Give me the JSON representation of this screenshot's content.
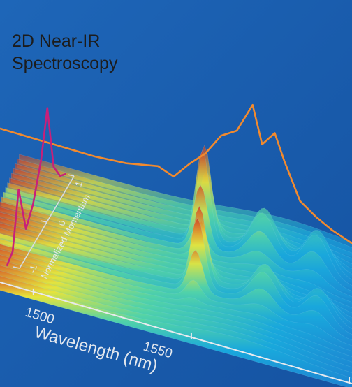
{
  "figure": {
    "title_line1": "2D Near-IR",
    "title_line2": "Spectroscopy"
  },
  "chart_data": {
    "type": "area",
    "title": "2D Near-IR Spectroscopy",
    "xlabel": "Wavelength (nm)",
    "x_ticks": [
      1500,
      1550
    ],
    "ylabel": "Normalized Momentum",
    "y_ticks": [
      -1,
      0,
      1
    ],
    "xlim": [
      1485,
      1600
    ],
    "ylim": [
      -1,
      1
    ],
    "zlabel": "",
    "grid": false,
    "legend": "none",
    "colormap": [
      "#1a5fb0",
      "#17a3d8",
      "#3fd1b2",
      "#e9e83a",
      "#d23420"
    ],
    "surface_peaks": [
      {
        "wavelength": 1543,
        "momentum": 0.4,
        "height": 1.0
      },
      {
        "wavelength": 1562,
        "momentum": 0.4,
        "height": 0.45
      },
      {
        "wavelength": 1579,
        "momentum": 0.4,
        "height": 0.4
      },
      {
        "wavelength": 1547,
        "momentum": -0.3,
        "height": 0.8
      },
      {
        "wavelength": 1568,
        "momentum": -0.3,
        "height": 0.35
      },
      {
        "wavelength": 1585,
        "momentum": -0.3,
        "height": 0.3
      }
    ],
    "series": [
      {
        "values": [
          [
            1485,
            0.06
          ],
          [
            1495,
            0.07
          ],
          [
            1505,
            0.08
          ],
          [
            1515,
            0.09
          ],
          [
            1525,
            0.12
          ],
          [
            1535,
            0.18
          ],
          [
            1540,
            0.14
          ],
          [
            1545,
            0.28
          ],
          [
            1550,
            0.4
          ],
          [
            1555,
            0.58
          ],
          [
            1560,
            0.66
          ],
          [
            1565,
            0.9
          ],
          [
            1568,
            0.62
          ],
          [
            1572,
            0.74
          ],
          [
            1575,
            0.55
          ],
          [
            1580,
            0.28
          ],
          [
            1585,
            0.2
          ],
          [
            1590,
            0.14
          ],
          [
            1595,
            0.1
          ],
          [
            1600,
            0.06
          ]
        ],
        "color": "#f28a2e"
      },
      {
        "values": [
          [
            -1.0,
            0.05
          ],
          [
            -0.8,
            0.1
          ],
          [
            -0.55,
            0.6
          ],
          [
            -0.35,
            0.12
          ],
          [
            -0.1,
            0.25
          ],
          [
            0.2,
            0.55
          ],
          [
            0.45,
            0.95
          ],
          [
            0.6,
            0.3
          ],
          [
            0.8,
            0.12
          ],
          [
            1.0,
            0.05
          ]
        ],
        "color": "#c8207a"
      }
    ]
  }
}
